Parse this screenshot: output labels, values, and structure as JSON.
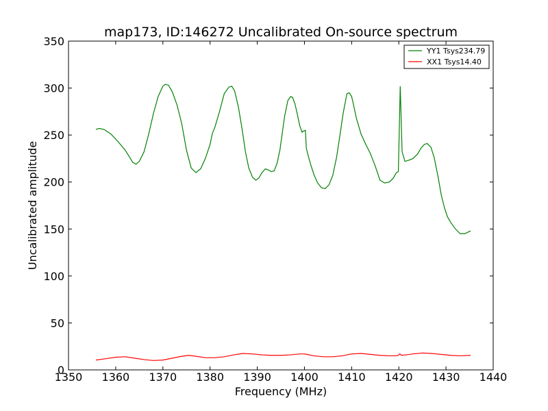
{
  "chart_data": {
    "type": "line",
    "title": "map173, ID:146272 Uncalibrated On-source spectrum",
    "xlabel": "Frequency (MHz)",
    "ylabel": "Uncalibrated amplitude",
    "xlim": [
      1350,
      1440
    ],
    "ylim": [
      0,
      350
    ],
    "x_ticks": [
      1350,
      1360,
      1370,
      1380,
      1390,
      1400,
      1410,
      1420,
      1430,
      1440
    ],
    "y_ticks": [
      0,
      50,
      100,
      150,
      200,
      250,
      300,
      350
    ],
    "x_tick_labels": [
      "1350",
      "1360",
      "1370",
      "1380",
      "1390",
      "1400",
      "1410",
      "1420",
      "1430",
      "1440"
    ],
    "y_tick_labels": [
      "0",
      "50",
      "100",
      "150",
      "200",
      "250",
      "300",
      "350"
    ],
    "grid": false,
    "legend_position": "top-right",
    "series": [
      {
        "name": "YY1 Tsys234.79",
        "color": "#008000",
        "x": [
          1355.8,
          1356.5,
          1357.5,
          1359,
          1360.5,
          1362,
          1363,
          1363.6,
          1364.3,
          1365,
          1366,
          1367,
          1368,
          1369,
          1370,
          1370.5,
          1371.2,
          1372,
          1373,
          1374,
          1375,
          1376,
          1377,
          1378,
          1379,
          1380,
          1380.5,
          1381,
          1382,
          1383,
          1384,
          1384.6,
          1385.2,
          1386,
          1386.8,
          1387.5,
          1388.2,
          1389,
          1389.7,
          1390.3,
          1391,
          1391.7,
          1392.3,
          1393,
          1393.6,
          1394.2,
          1394.8,
          1395.3,
          1395.8,
          1396.5,
          1397.1,
          1397.5,
          1398,
          1398.5,
          1399,
          1399.5,
          1399.7,
          1400.2,
          1400.4,
          1400.8,
          1401.3,
          1402,
          1402.8,
          1403.6,
          1404.4,
          1405.2,
          1406,
          1406.8,
          1407.5,
          1408.2,
          1409,
          1409.5,
          1410,
          1410.5,
          1411,
          1412,
          1413,
          1414,
          1415,
          1416,
          1417,
          1418,
          1418.8,
          1419.5,
          1419.9,
          1420.3,
          1420.7,
          1421.3,
          1422,
          1423,
          1424,
          1424.7,
          1425.4,
          1426,
          1426.8,
          1427.5,
          1428.3,
          1429,
          1429.7,
          1430.3,
          1431,
          1432,
          1433,
          1434,
          1435.2
        ],
        "values": [
          256,
          257,
          256,
          251,
          243,
          234,
          226,
          221,
          219,
          222,
          232,
          251,
          273,
          291,
          302,
          304,
          303,
          296,
          282,
          262,
          234,
          215,
          210,
          214,
          225,
          240,
          252,
          258,
          275,
          294,
          301,
          302,
          297,
          280,
          256,
          232,
          215,
          205,
          202,
          204,
          210,
          214,
          213,
          211,
          212,
          220,
          234,
          252,
          270,
          287,
          291,
          290,
          283,
          272,
          260,
          253,
          254,
          255,
          236,
          228,
          219,
          208,
          199,
          194,
          193,
          197,
          207,
          226,
          249,
          273,
          294,
          295,
          291,
          280,
          268,
          251,
          240,
          230,
          217,
          202,
          199,
          200,
          204,
          210,
          211,
          302,
          232,
          222,
          223,
          225,
          230,
          236,
          240,
          241,
          237,
          226,
          206,
          186,
          172,
          163,
          157,
          150,
          145,
          145,
          148
        ]
      },
      {
        "name": "XX1 Tsys14.40",
        "color": "#ff0000",
        "x": [
          1355.8,
          1358,
          1360,
          1362,
          1364,
          1366,
          1368,
          1370,
          1372,
          1374,
          1375.5,
          1377,
          1379,
          1381,
          1383,
          1385,
          1387,
          1389,
          1391,
          1393,
          1395,
          1397,
          1399,
          1400,
          1400.5,
          1402,
          1404,
          1406,
          1408,
          1410,
          1412,
          1414,
          1416,
          1418,
          1419.8,
          1420.2,
          1420.6,
          1421.5,
          1423,
          1425,
          1427,
          1429,
          1431,
          1433,
          1435.2
        ],
        "values": [
          10.5,
          12,
          13.5,
          14,
          12.5,
          11,
          10,
          10.5,
          12.5,
          14.5,
          15.5,
          14.5,
          13,
          13,
          14,
          16,
          17.5,
          17,
          16,
          15.5,
          15.5,
          16,
          17,
          17,
          16.5,
          15,
          14,
          14,
          15,
          17,
          17.5,
          16.5,
          15.5,
          15,
          15.2,
          17,
          15.5,
          16,
          17,
          18,
          17.5,
          16.5,
          15.5,
          15,
          15.5
        ]
      }
    ]
  }
}
